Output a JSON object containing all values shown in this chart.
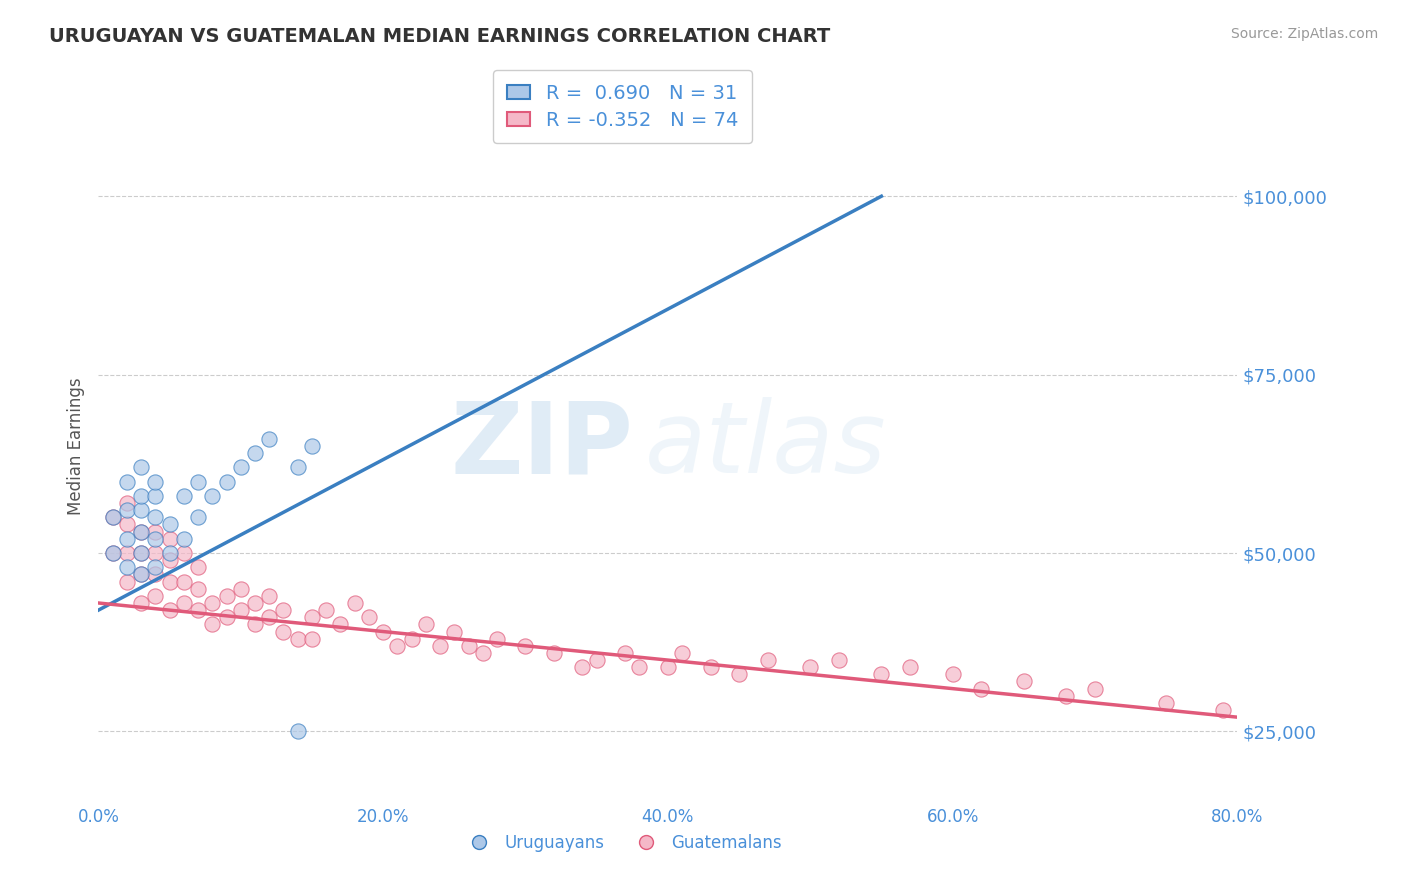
{
  "title": "URUGUAYAN VS GUATEMALAN MEDIAN EARNINGS CORRELATION CHART",
  "source_text": "Source: ZipAtlas.com",
  "ylabel": "Median Earnings",
  "xlim": [
    0.0,
    0.8
  ],
  "ylim": [
    15000,
    115000
  ],
  "yticks": [
    25000,
    50000,
    75000,
    100000
  ],
  "ytick_labels": [
    "$25,000",
    "$50,000",
    "$75,000",
    "$100,000"
  ],
  "xticks": [
    0.0,
    0.2,
    0.4,
    0.6,
    0.8
  ],
  "xtick_labels": [
    "0.0%",
    "20.0%",
    "40.0%",
    "60.0%",
    "80.0%"
  ],
  "uruguayan_color": "#adc8e8",
  "guatemalan_color": "#f5b8c8",
  "uruguayan_line_color": "#3a7fc1",
  "guatemalan_line_color": "#e05a7a",
  "R_uruguayan": 0.69,
  "N_uruguayan": 31,
  "R_guatemalan": -0.352,
  "N_guatemalan": 74,
  "watermark_ZIP": "ZIP",
  "watermark_atlas": "atlas",
  "background_color": "#ffffff",
  "grid_color": "#cccccc",
  "tick_color": "#4a90d9",
  "title_color": "#333333",
  "legend_label_1": "Uruguayans",
  "legend_label_2": "Guatemalans",
  "uruguayan_scatter_x": [
    0.01,
    0.01,
    0.02,
    0.02,
    0.02,
    0.02,
    0.03,
    0.03,
    0.03,
    0.03,
    0.03,
    0.03,
    0.04,
    0.04,
    0.04,
    0.04,
    0.04,
    0.05,
    0.05,
    0.06,
    0.06,
    0.07,
    0.07,
    0.08,
    0.09,
    0.1,
    0.11,
    0.12,
    0.14,
    0.14,
    0.15
  ],
  "uruguayan_scatter_y": [
    50000,
    55000,
    48000,
    52000,
    56000,
    60000,
    47000,
    50000,
    53000,
    56000,
    58000,
    62000,
    48000,
    52000,
    55000,
    58000,
    60000,
    50000,
    54000,
    52000,
    58000,
    55000,
    60000,
    58000,
    60000,
    62000,
    64000,
    66000,
    62000,
    25000,
    65000
  ],
  "guatemalan_scatter_x": [
    0.01,
    0.01,
    0.02,
    0.02,
    0.02,
    0.02,
    0.03,
    0.03,
    0.03,
    0.03,
    0.04,
    0.04,
    0.04,
    0.04,
    0.05,
    0.05,
    0.05,
    0.05,
    0.06,
    0.06,
    0.06,
    0.07,
    0.07,
    0.07,
    0.08,
    0.08,
    0.09,
    0.09,
    0.1,
    0.1,
    0.11,
    0.11,
    0.12,
    0.12,
    0.13,
    0.13,
    0.14,
    0.15,
    0.15,
    0.16,
    0.17,
    0.18,
    0.19,
    0.2,
    0.21,
    0.22,
    0.23,
    0.24,
    0.25,
    0.26,
    0.27,
    0.28,
    0.3,
    0.32,
    0.34,
    0.35,
    0.37,
    0.38,
    0.4,
    0.41,
    0.43,
    0.45,
    0.47,
    0.5,
    0.52,
    0.55,
    0.57,
    0.6,
    0.62,
    0.65,
    0.68,
    0.7,
    0.75,
    0.79
  ],
  "guatemalan_scatter_y": [
    50000,
    55000,
    46000,
    50000,
    54000,
    57000,
    43000,
    47000,
    50000,
    53000,
    44000,
    47000,
    50000,
    53000,
    42000,
    46000,
    49000,
    52000,
    43000,
    46000,
    50000,
    42000,
    45000,
    48000,
    40000,
    43000,
    41000,
    44000,
    42000,
    45000,
    40000,
    43000,
    41000,
    44000,
    39000,
    42000,
    38000,
    38000,
    41000,
    42000,
    40000,
    43000,
    41000,
    39000,
    37000,
    38000,
    40000,
    37000,
    39000,
    37000,
    36000,
    38000,
    37000,
    36000,
    34000,
    35000,
    36000,
    34000,
    34000,
    36000,
    34000,
    33000,
    35000,
    34000,
    35000,
    33000,
    34000,
    33000,
    31000,
    32000,
    30000,
    31000,
    29000,
    28000
  ],
  "uru_line_x": [
    0.0,
    0.55
  ],
  "uru_line_y": [
    42000,
    100000
  ],
  "gua_line_x": [
    0.0,
    0.8
  ],
  "gua_line_y": [
    43000,
    27000
  ]
}
